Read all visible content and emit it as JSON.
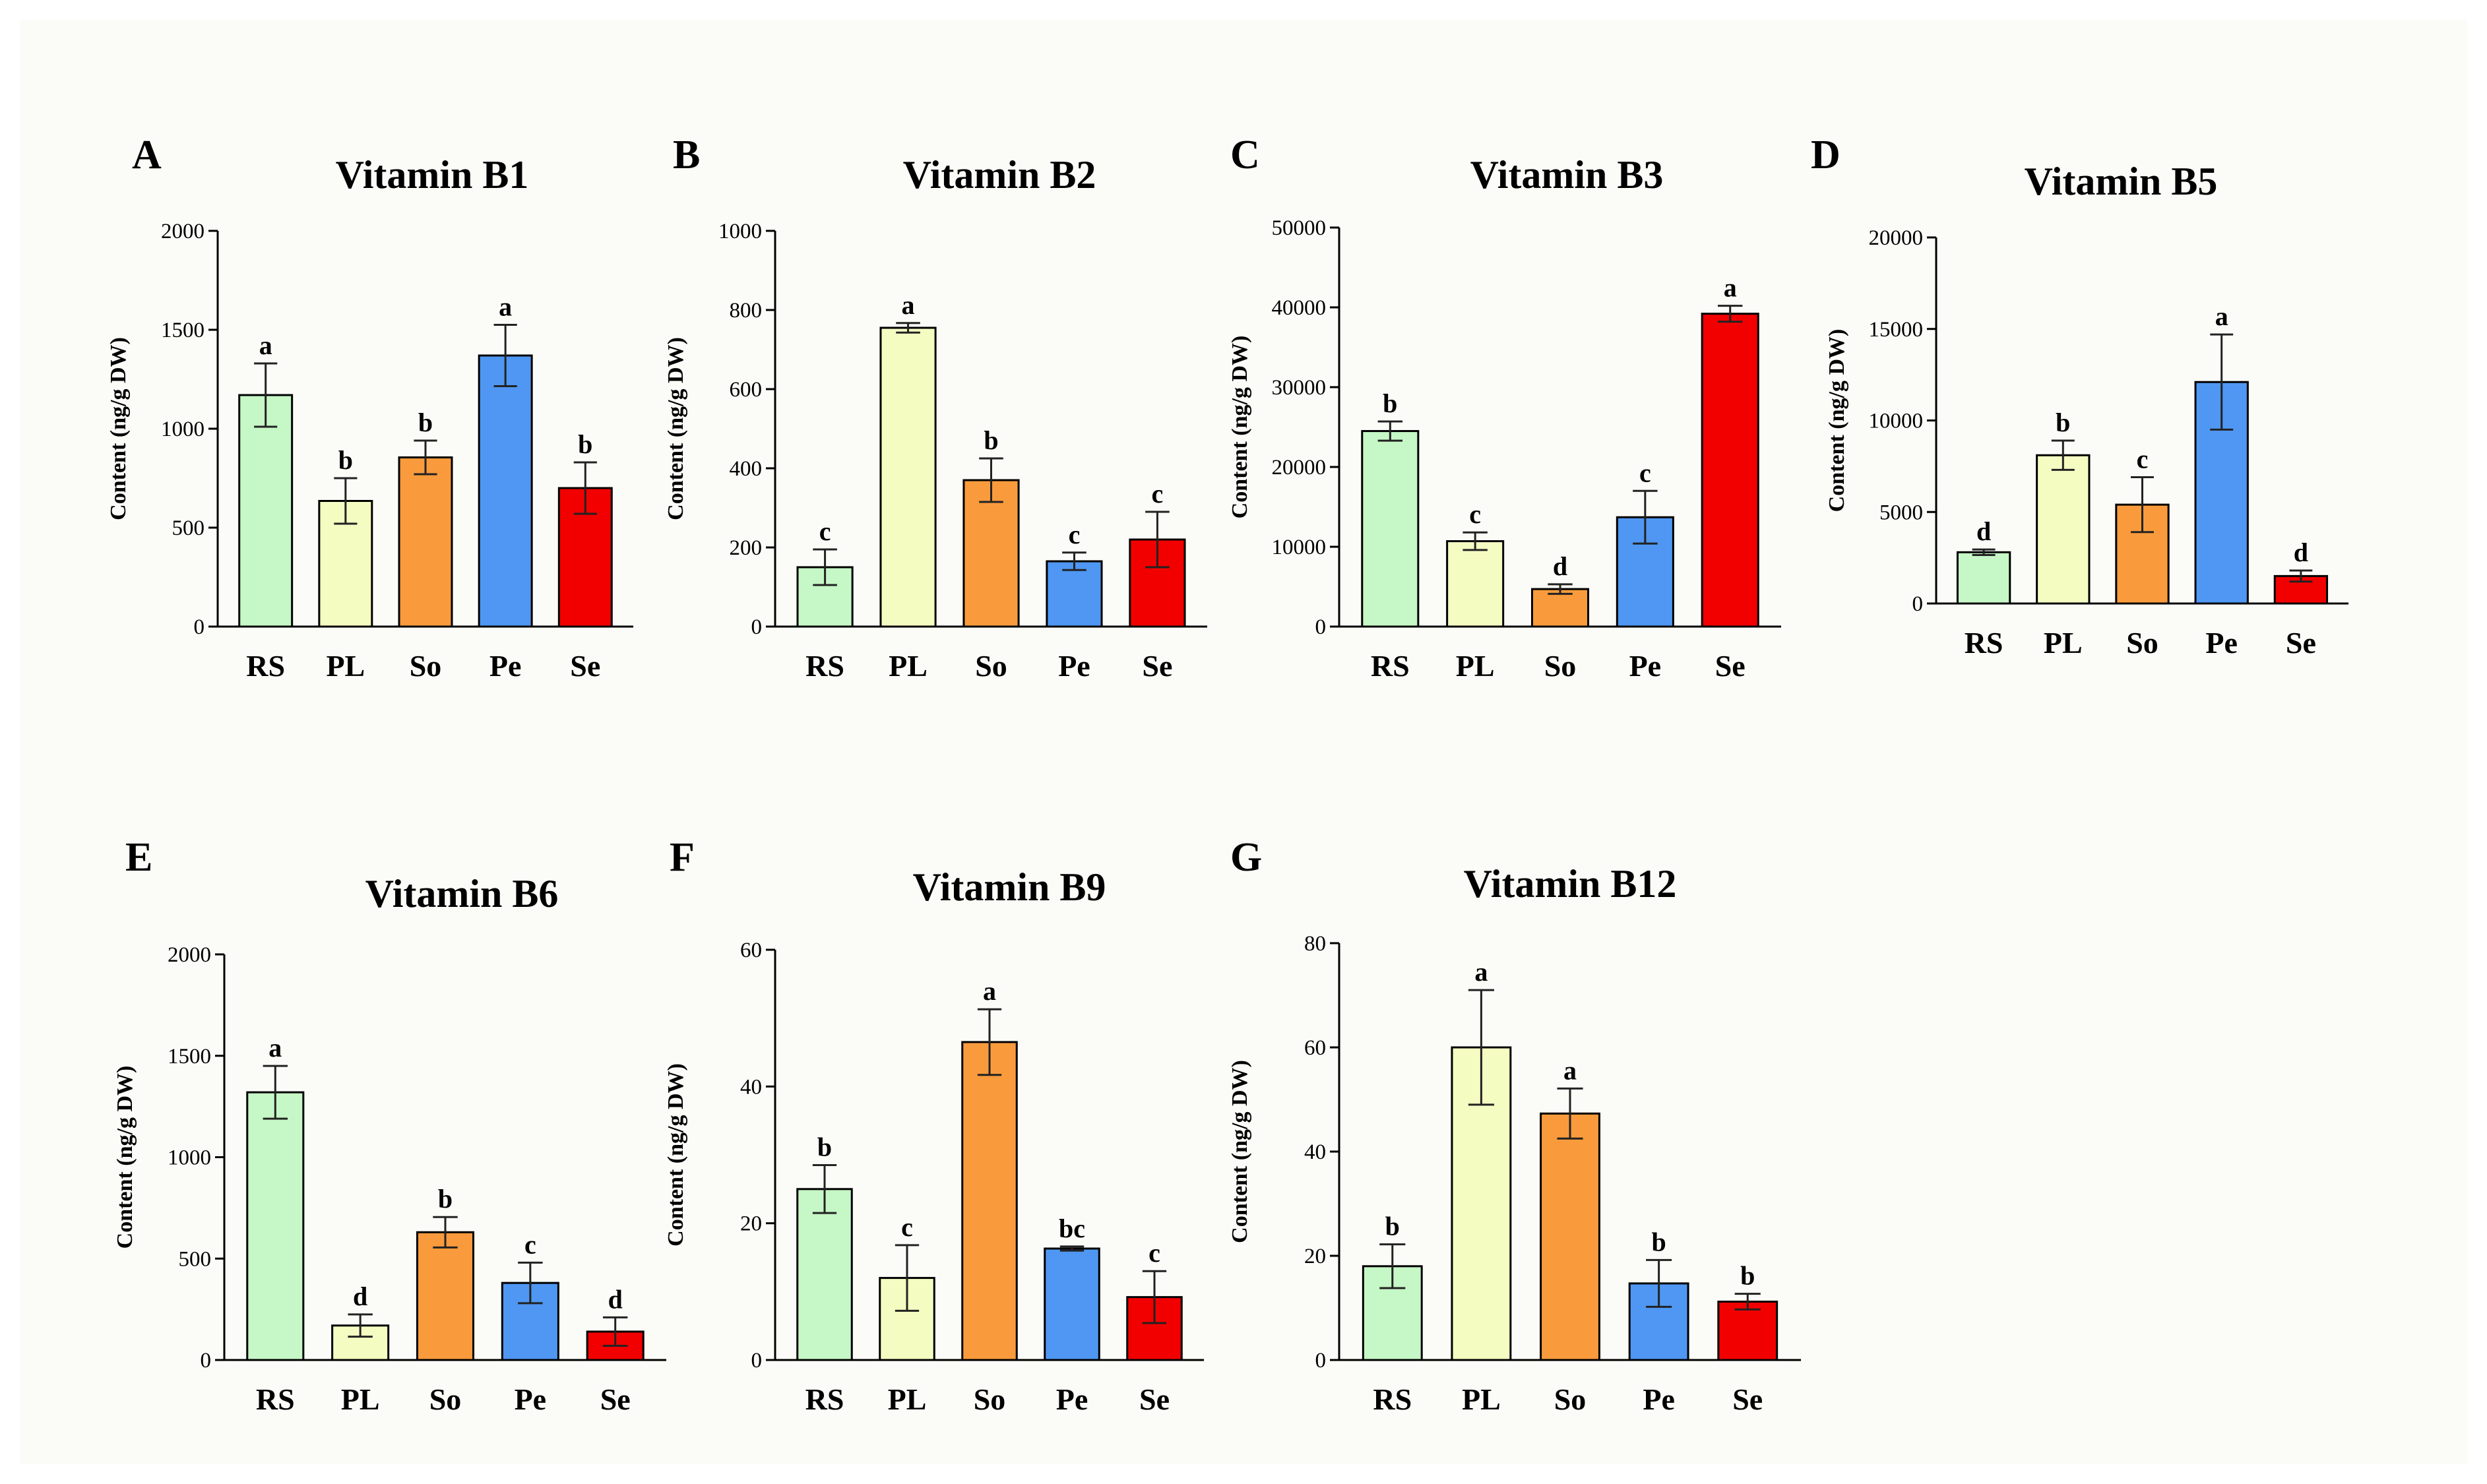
{
  "colors": {
    "background": "#ffffff",
    "panel_background": "#fbfbf7",
    "axis": "#000000",
    "RS": "#c6f7c6",
    "PL": "#f5fcc2",
    "So": "#f99b3c",
    "Pe": "#4f97f2",
    "Se": "#f20000"
  },
  "chart_data": [
    {
      "panel": "A",
      "type": "bar",
      "title": "Vitamin B1",
      "ylabel": "Content (ng/g DW)",
      "categories": [
        "RS",
        "PL",
        "So",
        "Pe",
        "Se"
      ],
      "values": [
        1170,
        635,
        855,
        1370,
        700
      ],
      "errors": [
        160,
        115,
        85,
        155,
        130
      ],
      "significance": [
        "a",
        "b",
        "b",
        "a",
        "b"
      ],
      "ylim": [
        0,
        2000
      ],
      "yticks": [
        0,
        500,
        1000,
        1500,
        2000
      ],
      "ytick_labels": [
        "0",
        "500",
        "1000",
        "1500",
        "2000"
      ]
    },
    {
      "panel": "B",
      "type": "bar",
      "title": "Vitamin B2",
      "ylabel": "Content (ng/g DW)",
      "categories": [
        "RS",
        "PL",
        "So",
        "Pe",
        "Se"
      ],
      "values": [
        150,
        755,
        370,
        165,
        220
      ],
      "errors": [
        45,
        12,
        55,
        22,
        70
      ],
      "significance": [
        "c",
        "a",
        "b",
        "c",
        "c"
      ],
      "ylim": [
        0,
        1000
      ],
      "yticks": [
        0,
        200,
        400,
        600,
        800,
        1000
      ],
      "ytick_labels": [
        "0",
        "200",
        "400",
        "600",
        "800",
        "1000"
      ]
    },
    {
      "panel": "C",
      "type": "bar",
      "title": "Vitamin B3",
      "ylabel": "Content (ng/g DW)",
      "categories": [
        "RS",
        "PL",
        "So",
        "Pe",
        "Se"
      ],
      "values": [
        24500,
        10700,
        4700,
        13700,
        39200
      ],
      "errors": [
        1200,
        1100,
        600,
        3300,
        1000
      ],
      "significance": [
        "b",
        "c",
        "d",
        "c",
        "a"
      ],
      "ylim": [
        0,
        50000
      ],
      "yticks": [
        0,
        10000,
        20000,
        30000,
        40000,
        50000
      ],
      "ytick_labels": [
        "0",
        "10000",
        "20000",
        "30000",
        "40000",
        "50000"
      ]
    },
    {
      "panel": "D",
      "type": "bar",
      "title": "Vitamin B5",
      "ylabel": "Content (ng/g DW)",
      "categories": [
        "RS",
        "PL",
        "So",
        "Pe",
        "Se"
      ],
      "values": [
        2800,
        8100,
        5400,
        12100,
        1500
      ],
      "errors": [
        150,
        800,
        1500,
        2600,
        300
      ],
      "significance": [
        "d",
        "b",
        "c",
        "a",
        "d"
      ],
      "ylim": [
        0,
        20000
      ],
      "yticks": [
        0,
        5000,
        10000,
        15000,
        20000
      ],
      "ytick_labels": [
        "0",
        "5000",
        "10000",
        "15000",
        "20000"
      ]
    },
    {
      "panel": "E",
      "type": "bar",
      "title": "Vitamin B6",
      "ylabel": "Content (ng/g DW)",
      "categories": [
        "RS",
        "PL",
        "So",
        "Pe",
        "Se"
      ],
      "values": [
        1320,
        170,
        630,
        380,
        140
      ],
      "errors": [
        130,
        55,
        75,
        100,
        70
      ],
      "significance": [
        "a",
        "d",
        "b",
        "c",
        "d"
      ],
      "ylim": [
        0,
        2000
      ],
      "yticks": [
        0,
        500,
        1000,
        1500,
        2000
      ],
      "ytick_labels": [
        "0",
        "500",
        "1000",
        "1500",
        "2000"
      ]
    },
    {
      "panel": "F",
      "type": "bar",
      "title": "Vitamin B9",
      "ylabel": "Content (ng/g DW)",
      "categories": [
        "RS",
        "PL",
        "So",
        "Pe",
        "Se"
      ],
      "values": [
        25,
        12,
        46.5,
        16.3,
        9.2
      ],
      "errors": [
        3.5,
        4.8,
        4.8,
        0.3,
        3.8
      ],
      "significance": [
        "b",
        "c",
        "a",
        "bc",
        "c"
      ],
      "ylim": [
        0,
        60
      ],
      "yticks": [
        0,
        20,
        40,
        60
      ],
      "ytick_labels": [
        "0",
        "20",
        "40",
        "60"
      ]
    },
    {
      "panel": "G",
      "type": "bar",
      "title": "Vitamin B12",
      "ylabel": "Content (ng/g DW)",
      "categories": [
        "RS",
        "PL",
        "So",
        "Pe",
        "Se"
      ],
      "values": [
        18,
        60,
        47.3,
        14.7,
        11.2
      ],
      "errors": [
        4.2,
        11,
        4.8,
        4.5,
        1.5
      ],
      "significance": [
        "b",
        "a",
        "a",
        "b",
        "b"
      ],
      "ylim": [
        0,
        80
      ],
      "yticks": [
        0,
        20,
        40,
        60,
        80
      ],
      "ytick_labels": [
        "0",
        "20",
        "40",
        "60",
        "80"
      ]
    }
  ]
}
